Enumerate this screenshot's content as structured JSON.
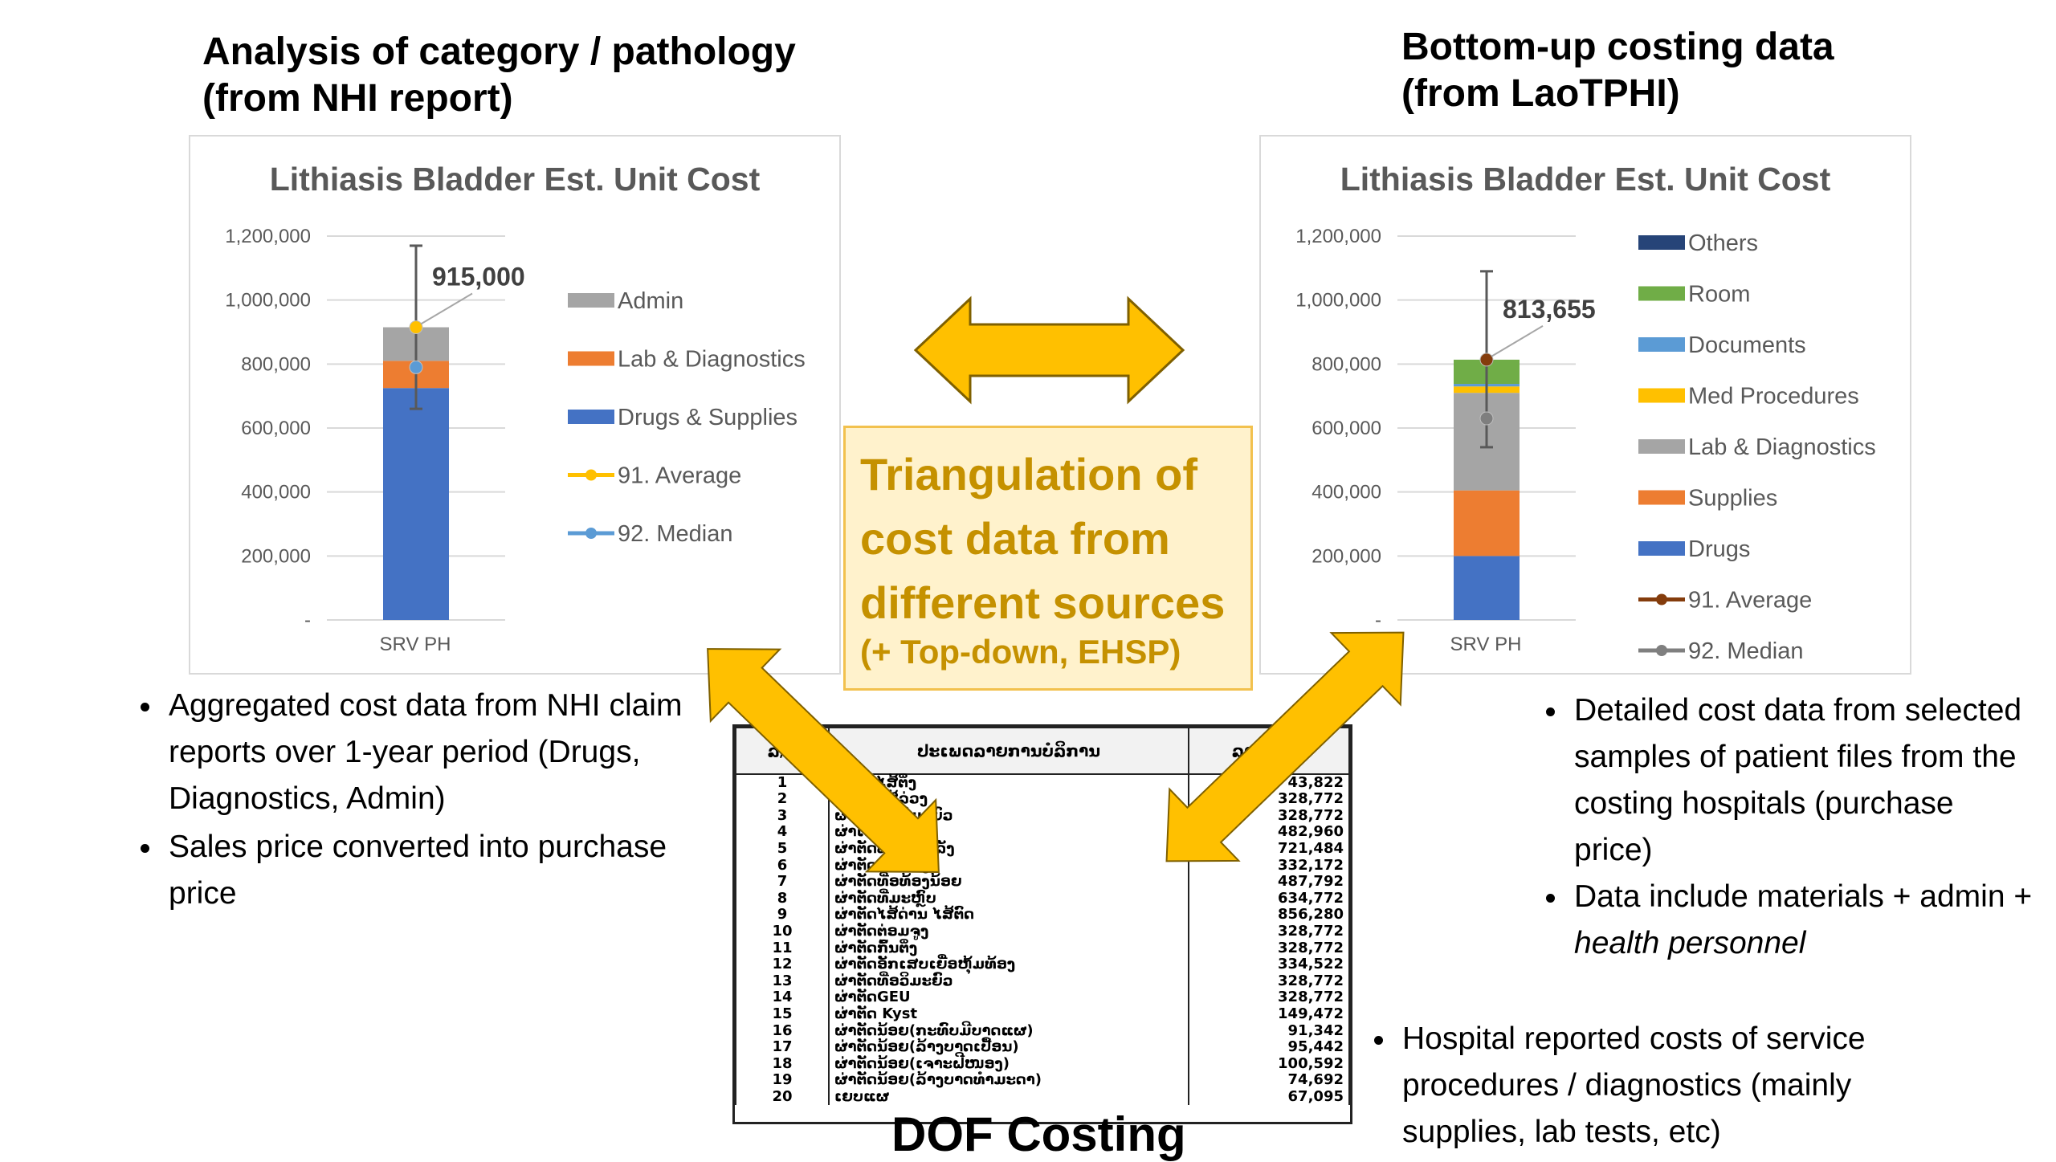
{
  "left": {
    "heading": [
      "Analysis of category / pathology",
      "(from NHI report)"
    ],
    "bullets": [
      "Aggregated cost data from NHI claim reports over 1-year period (Drugs, Diagnostics, Admin)",
      "Sales price converted into purchase price"
    ]
  },
  "right": {
    "heading": [
      "Bottom-up costing data",
      "(from LaoTPHI)"
    ],
    "bullets": [
      "Detailed cost data from selected samples of patient files from the costing hospitals (purchase price)",
      "Data include materials + admin + "
    ],
    "italic_tail": "health personnel"
  },
  "bottom_right_bullet": "Hospital reported costs of service procedures / diagnostics (mainly supplies, lab tests, etc)",
  "center": {
    "lines": [
      "Triangulation of",
      "cost data from",
      "different sources"
    ],
    "sub": "(+ Top-down, EHSP)"
  },
  "dof": {
    "title": "DOF Costing",
    "headers": [
      "ລ/ດ",
      "ປະເພດລາຍການບໍລິການ",
      "ລາຄາ/ກີບ"
    ],
    "rows": [
      [
        "1",
        "ຜ່າຕັດໄສ້ຕິ່ງ",
        "43,822"
      ],
      [
        "2",
        "ຜ່າຕັດໄສ້ລ່ວງ",
        "328,772"
      ],
      [
        "3",
        "ຜ່າຕັດທີ່ອວິມະຍົວ",
        "328,772"
      ],
      [
        "4",
        "ຜ່າເຊີ່ມມົດລູກ",
        "482,960"
      ],
      [
        "5",
        "ຜ່າຕັດທໍ່ອໄສ້ຫລັງ",
        "721,484"
      ],
      [
        "6",
        "ຜ່າຕັດທີ່ອທ້ອງ",
        "332,172"
      ],
      [
        "7",
        "ຜ່າຕັດທີ່ອທ້ອງນ້ອຍ",
        "487,792"
      ],
      [
        "8",
        "ຜ່າຕັດທີ່ມະຫຼົບ",
        "634,772"
      ],
      [
        "9",
        "ຜ່າຕັດໄສ້ດ່ານ ໄສ້ຕົດ",
        "856,280"
      ],
      [
        "10",
        "ຜ່າຕັດຕ່ອມຈູງ",
        "328,772"
      ],
      [
        "11",
        "ຜ່າຕັດກົ້ນຕິ່ງ",
        "328,772"
      ],
      [
        "12",
        "ຜ່າຕັດອັກເສບເຍື່ອຫຸ້ມທ້ອງ",
        "334,522"
      ],
      [
        "13",
        "ຜ່າຕັດທີ່ອວິມະຍົວ",
        "328,772"
      ],
      [
        "14",
        "ຜ່າຕັດGEU",
        "328,772"
      ],
      [
        "15",
        "ຜ່າຕັດ Kyst",
        "149,472"
      ],
      [
        "16",
        "ຜ່າຕັດນ້ອຍ(ກະທົບມີບາດແຜ)",
        "91,342"
      ],
      [
        "17",
        "ຜ່າຕັດນ້ອຍ(ລ້າງບາດເປື້ອນ)",
        "95,442"
      ],
      [
        "18",
        "ຜ່າຕັດນ້ອຍ(ເຈາະຝີໜອງ)",
        "100,592"
      ],
      [
        "19",
        "ຜ່າຕັດນ້ອຍ(ລ້າງບາດທຳມະດາ)",
        "74,692"
      ],
      [
        "20",
        "ເຍບແຜ",
        "67,095"
      ]
    ]
  },
  "chart_data": [
    {
      "type": "bar",
      "stacked": true,
      "title": "Lithiasis Bladder Est. Unit Cost",
      "categories": [
        "SRV PH"
      ],
      "ylim": [
        0,
        1200000
      ],
      "yticks": [
        "-",
        "200,000",
        "400,000",
        "600,000",
        "800,000",
        "1,000,000",
        "1,200,000"
      ],
      "series": [
        {
          "name": "Drugs & Supplies",
          "values": [
            725000
          ],
          "color": "#4472c4"
        },
        {
          "name": "Lab & Diagnostics",
          "values": [
            85000
          ],
          "color": "#ed7d31"
        },
        {
          "name": "Admin",
          "values": [
            105000
          ],
          "color": "#a5a5a5"
        }
      ],
      "lines": [
        {
          "name": "91. Average",
          "values": [
            915000
          ],
          "color": "#ffc000"
        },
        {
          "name": "92. Median",
          "values": [
            790000
          ],
          "color": "#5b9bd5"
        }
      ],
      "error_bar": [
        660000,
        1170000
      ],
      "data_label": "915,000",
      "legend_order": [
        "Admin",
        "Lab & Diagnostics",
        "Drugs & Supplies",
        "91. Average",
        "92. Median"
      ]
    },
    {
      "type": "bar",
      "stacked": true,
      "title": "Lithiasis Bladder Est. Unit Cost",
      "categories": [
        "SRV PH"
      ],
      "ylim": [
        0,
        1200000
      ],
      "yticks": [
        "-",
        "200,000",
        "400,000",
        "600,000",
        "800,000",
        "1,000,000",
        "1,200,000"
      ],
      "series": [
        {
          "name": "Drugs",
          "values": [
            200000
          ],
          "color": "#4472c4"
        },
        {
          "name": "Supplies",
          "values": [
            205000
          ],
          "color": "#ed7d31"
        },
        {
          "name": "Lab & Diagnostics",
          "values": [
            305000
          ],
          "color": "#a5a5a5"
        },
        {
          "name": "Med Procedures",
          "values": [
            20000
          ],
          "color": "#ffc000"
        },
        {
          "name": "Documents",
          "values": [
            8000
          ],
          "color": "#5b9bd5"
        },
        {
          "name": "Room",
          "values": [
            75655
          ],
          "color": "#70ad47"
        },
        {
          "name": "Others",
          "values": [
            0
          ],
          "color": "#264478"
        }
      ],
      "lines": [
        {
          "name": "91. Average",
          "values": [
            813655
          ],
          "color": "#843c0c"
        },
        {
          "name": "92. Median",
          "values": [
            630000
          ],
          "color": "#7f7f7f"
        }
      ],
      "error_bar": [
        540000,
        1090000
      ],
      "data_label": "813,655",
      "legend_order": [
        "Others",
        "Room",
        "Documents",
        "Med Procedures",
        "Lab & Diagnostics",
        "Supplies",
        "Drugs",
        "91. Average",
        "92. Median"
      ]
    }
  ]
}
